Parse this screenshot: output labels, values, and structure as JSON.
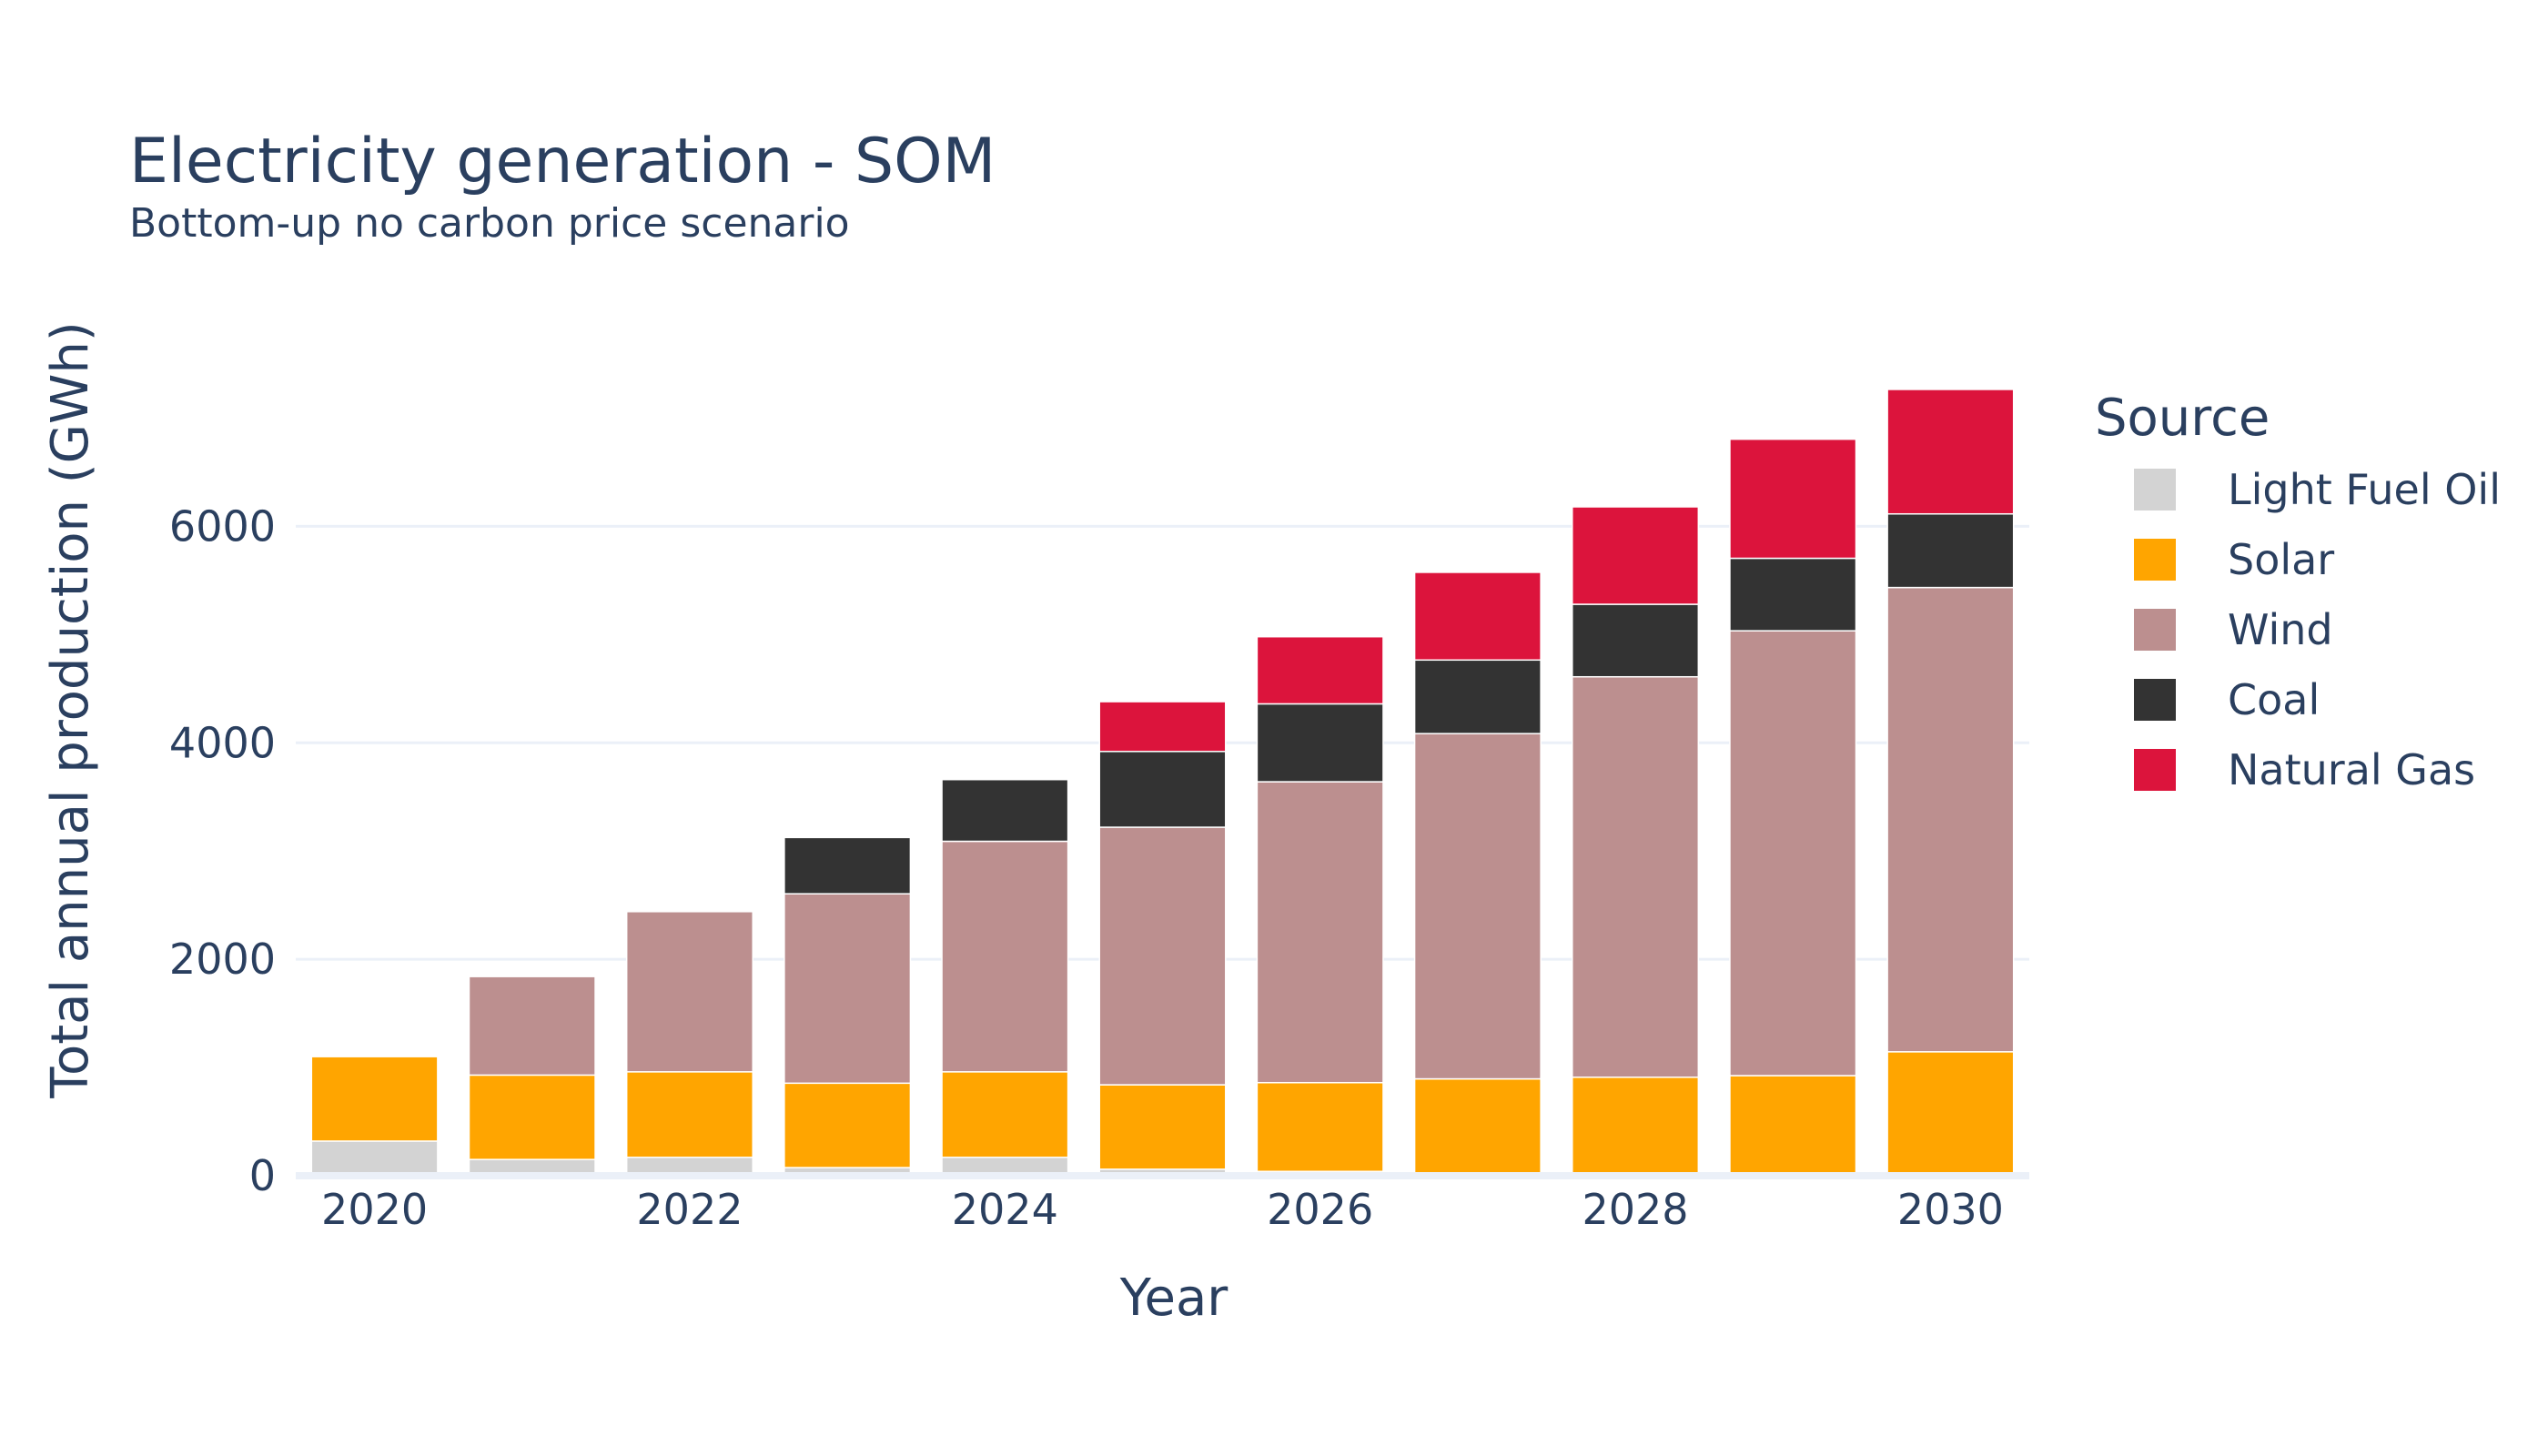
{
  "chart_data": {
    "type": "bar",
    "stacked": true,
    "title": "Electricity generation - SOM",
    "subtitle": "Bottom-up no carbon price scenario",
    "xlabel": "Year",
    "ylabel": "Total annual production (GWh)",
    "categories": [
      2020,
      2021,
      2022,
      2023,
      2024,
      2025,
      2026,
      2027,
      2028,
      2029,
      2030
    ],
    "x_ticks": [
      "2020",
      "2022",
      "2024",
      "2026",
      "2028",
      "2030"
    ],
    "y_ticks": [
      "0",
      "2000",
      "4000",
      "6000"
    ],
    "ylim": [
      0,
      7500
    ],
    "grid": true,
    "legend_title": "Source",
    "legend_position": "right",
    "series": [
      {
        "name": "Light Fuel Oil",
        "color": "#d3d3d3",
        "values": [
          320,
          150,
          170,
          75,
          170,
          60,
          40,
          25,
          20,
          15,
          15
        ]
      },
      {
        "name": "Solar",
        "color": "#ffa500",
        "values": [
          780,
          780,
          790,
          780,
          790,
          780,
          820,
          870,
          890,
          910,
          1130
        ]
      },
      {
        "name": "Wind",
        "color": "#bc8f8f",
        "values": [
          0,
          910,
          1480,
          1750,
          2130,
          2380,
          2780,
          3190,
          3700,
          4110,
          4290
        ]
      },
      {
        "name": "Coal",
        "color": "#333333",
        "values": [
          0,
          0,
          0,
          520,
          570,
          700,
          720,
          680,
          670,
          670,
          680
        ]
      },
      {
        "name": "Natural Gas",
        "color": "#dc143c",
        "values": [
          0,
          0,
          0,
          0,
          0,
          460,
          620,
          810,
          900,
          1100,
          1150
        ]
      }
    ]
  }
}
